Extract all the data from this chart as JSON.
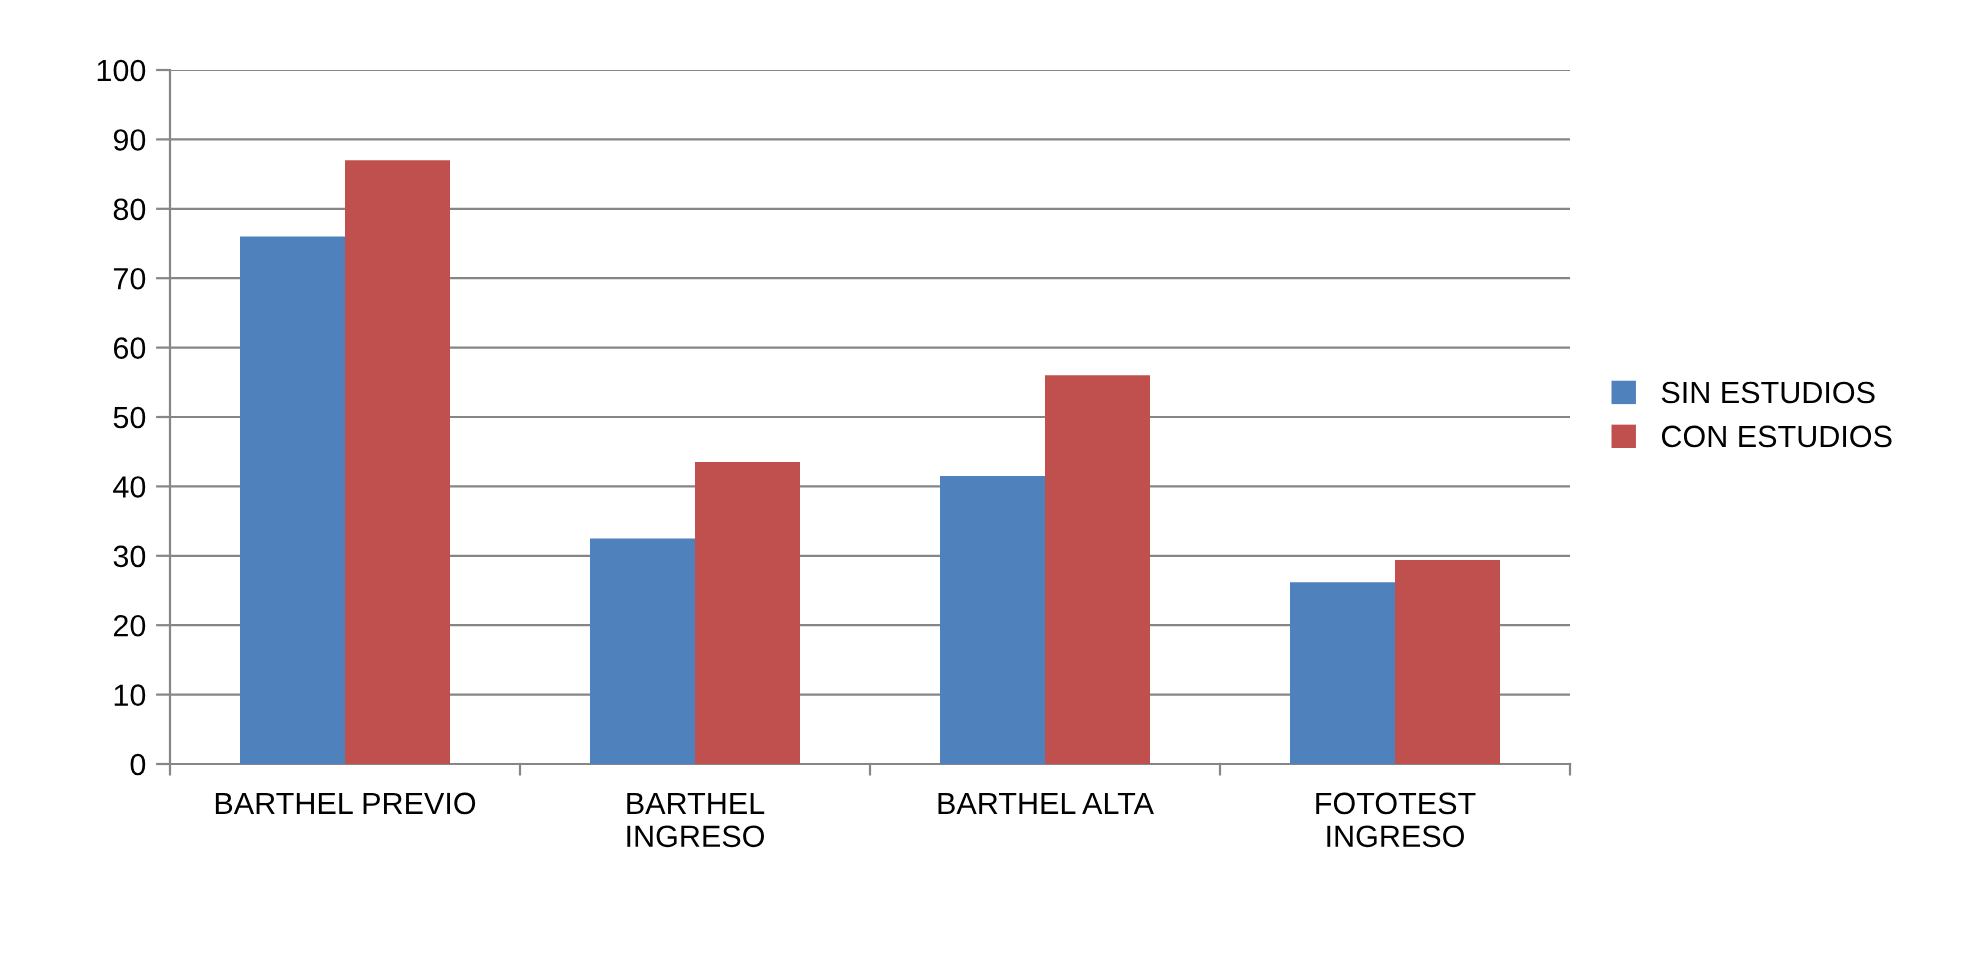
{
  "chart_data": {
    "type": "bar",
    "categories": [
      "BARTHEL PREVIO",
      "BARTHEL\nINGRESO",
      "BARTHEL ALTA",
      "FOTOTEST\nINGRESO"
    ],
    "series": [
      {
        "name": "SIN ESTUDIOS",
        "color": "#4f81bd",
        "values": [
          76,
          32.5,
          41.5,
          26.2
        ]
      },
      {
        "name": "CON ESTUDIOS",
        "color": "#c0504d",
        "values": [
          87,
          43.5,
          56,
          29.4
        ]
      }
    ],
    "ylim": [
      0,
      100
    ],
    "yticks": [
      0,
      10,
      20,
      30,
      40,
      50,
      60,
      70,
      80,
      90,
      100
    ],
    "grid": "y",
    "legend": "right"
  }
}
